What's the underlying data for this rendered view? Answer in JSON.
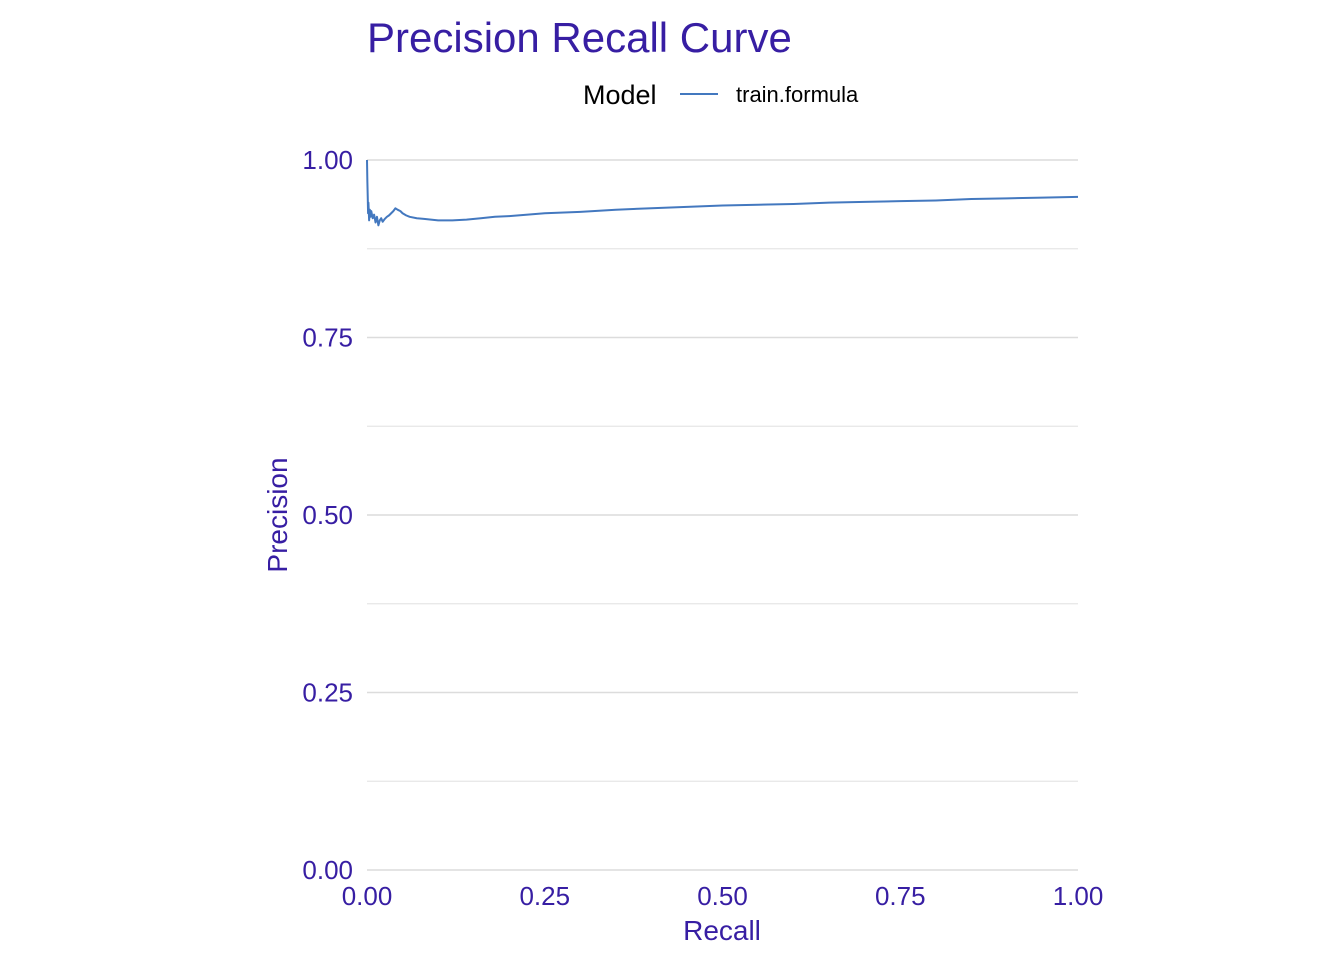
{
  "colors": {
    "text_accent": "#371ea3",
    "series": "#4378bf",
    "grid": "#dcdcdc",
    "background": "#ffffff"
  },
  "legend": {
    "title": "Model",
    "items": [
      {
        "label": "train.formula",
        "color": "#4378bf"
      }
    ]
  },
  "chart_data": {
    "type": "line",
    "title": "Precision Recall Curve",
    "xlabel": "Recall",
    "ylabel": "Precision",
    "xlim": [
      0,
      1
    ],
    "ylim": [
      0,
      1
    ],
    "x_ticks": [
      0,
      0.25,
      0.5,
      0.75,
      1
    ],
    "y_ticks": [
      0,
      0.25,
      0.5,
      0.75,
      1
    ],
    "x_tick_labels": [
      "0.00",
      "0.25",
      "0.50",
      "0.75",
      "1.00"
    ],
    "y_tick_labels": [
      "0.00",
      "0.25",
      "0.50",
      "0.75",
      "1.00"
    ],
    "grid": true,
    "legend_position": "top",
    "series": [
      {
        "name": "train.formula",
        "x": [
          0,
          0.0005,
          0.001,
          0.0015,
          0.002,
          0.003,
          0.004,
          0.005,
          0.006,
          0.008,
          0.01,
          0.012,
          0.014,
          0.016,
          0.018,
          0.02,
          0.022,
          0.025,
          0.028,
          0.031,
          0.034,
          0.037,
          0.04,
          0.043,
          0.047,
          0.05,
          0.055,
          0.06,
          0.07,
          0.08,
          0.09,
          0.1,
          0.12,
          0.14,
          0.16,
          0.18,
          0.2,
          0.25,
          0.3,
          0.35,
          0.4,
          0.45,
          0.5,
          0.55,
          0.6,
          0.65,
          0.7,
          0.75,
          0.8,
          0.85,
          0.9,
          0.95,
          1.0
        ],
        "y": [
          1.0,
          0.97,
          0.95,
          0.925,
          0.94,
          0.915,
          0.93,
          0.92,
          0.928,
          0.918,
          0.923,
          0.912,
          0.92,
          0.908,
          0.915,
          0.918,
          0.913,
          0.917,
          0.92,
          0.922,
          0.925,
          0.928,
          0.932,
          0.93,
          0.928,
          0.925,
          0.922,
          0.92,
          0.918,
          0.917,
          0.916,
          0.915,
          0.915,
          0.916,
          0.918,
          0.92,
          0.921,
          0.925,
          0.927,
          0.93,
          0.932,
          0.934,
          0.936,
          0.937,
          0.938,
          0.94,
          0.941,
          0.942,
          0.943,
          0.945,
          0.946,
          0.947,
          0.948
        ]
      }
    ]
  }
}
